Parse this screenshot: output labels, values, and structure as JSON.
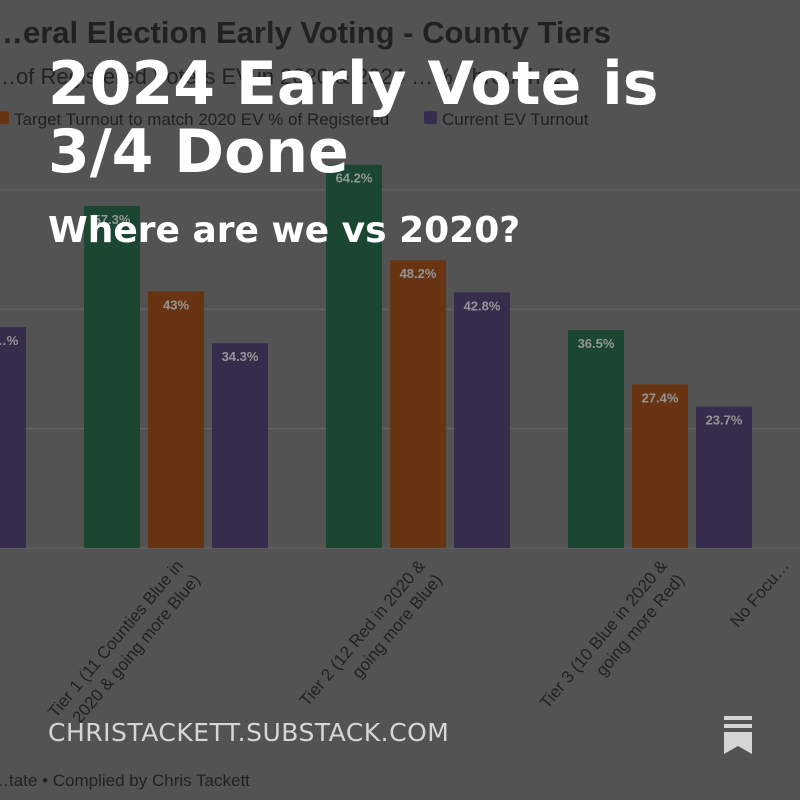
{
  "overlay": {
    "headline": "2024 Early Vote is 3/4 Done",
    "subheadline": "Where are we vs 2020?",
    "domain": "CHRISTACKETT.SUBSTACK.COM",
    "icon": "substack-bookmark-icon"
  },
  "chart_data": {
    "type": "bar",
    "title": "…eral Election Early Voting - County Tiers",
    "subtitle": "…of Registered Voters EV in 2020 & 2024 …% Through EV",
    "legend": [
      "Target Turnout to match 2020 EV % of Registered",
      "Current EV Turnout"
    ],
    "source": "…tate • Complied by Chris Tackett",
    "categories": [
      "Tier 1 (11 Counties Blue in 2020 & going more Blue)",
      "Tier 2 (12 Red in 2020 & going more Blue)",
      "Tier 3 (10 Blue in 2020 & going more Red)",
      "No Focu…"
    ],
    "series": [
      {
        "values": [
          57.3,
          64.2,
          36.5,
          null
        ],
        "labels": [
          "57.3%",
          "64.2%",
          "36.5%",
          null
        ],
        "color": "#2f7a57"
      },
      {
        "name": "Target Turnout to match 2020 EV % of Registered",
        "values": [
          43,
          48.2,
          27.4,
          null
        ],
        "labels": [
          "43%",
          "48.2%",
          "27.4%",
          null
        ],
        "color": "#b55a1e"
      },
      {
        "name": "Current EV Turnout",
        "values": [
          34.3,
          42.8,
          23.7,
          null
        ],
        "labels": [
          "34.3%",
          "42.8%",
          "23.7%",
          null
        ],
        "color": "#5d4f86"
      }
    ],
    "partial_bar": {
      "value": 37.0,
      "label": "…%"
    },
    "ylim": [
      0,
      100
    ],
    "grid": true,
    "legend_position": "top-left"
  }
}
